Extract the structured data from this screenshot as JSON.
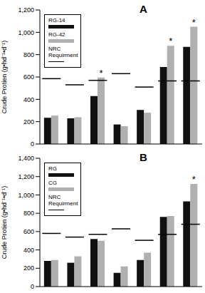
{
  "chart_data": [
    {
      "type": "bar",
      "title": "A",
      "y_label": "Crude Protien (g•hd⁻¹•d⁻¹)",
      "categories": [
        null,
        null,
        null,
        null,
        null,
        null,
        null
      ],
      "series": [
        {
          "name": "RG-14",
          "type": "bar",
          "color": "#111111",
          "values": [
            235,
            230,
            430,
            175,
            305,
            690,
            870
          ]
        },
        {
          "name": "RG-42",
          "type": "bar",
          "color": "#b0b0b0",
          "values": [
            255,
            240,
            595,
            160,
            280,
            880,
            1050
          ]
        },
        {
          "name": "NRC Requirment",
          "type": "scatter",
          "marker": "hline",
          "color": "#000000",
          "values": [
            585,
            530,
            570,
            630,
            510,
            565,
            565
          ]
        }
      ],
      "annotations": [
        null,
        null,
        "*",
        null,
        null,
        "*",
        "*"
      ],
      "ylim": [
        0,
        1200
      ],
      "yticks": [
        0,
        200,
        400,
        600,
        800,
        {
          "value": 1000,
          "label": "1,000"
        },
        {
          "value": 1200,
          "label": "1,200"
        }
      ],
      "grid": false,
      "tick_labels": "y",
      "legend": "upper left"
    },
    {
      "type": "bar",
      "title": "B",
      "y_label": "Crude Protien (g•hd⁻¹•d⁻¹)",
      "categories": [
        null,
        null,
        null,
        null,
        null,
        null,
        null
      ],
      "series": [
        {
          "name": "RG",
          "type": "bar",
          "color": "#111111",
          "values": [
            280,
            260,
            520,
            150,
            290,
            760,
            930
          ]
        },
        {
          "name": "CG",
          "type": "bar",
          "color": "#b0b0b0",
          "values": [
            290,
            330,
            500,
            220,
            370,
            770,
            1120
          ]
        },
        {
          "name": "NRC Requirment",
          "type": "scatter",
          "marker": "hline",
          "color": "#000000",
          "values": [
            580,
            540,
            570,
            630,
            505,
            570,
            680
          ]
        }
      ],
      "annotations": [
        null,
        null,
        null,
        null,
        null,
        null,
        "*"
      ],
      "ylim": [
        0,
        1400
      ],
      "yticks": [
        0,
        200,
        400,
        600,
        800,
        {
          "value": 1000,
          "label": "1,000"
        },
        {
          "value": 1200,
          "label": "1,200"
        },
        {
          "value": 1400,
          "label": "1,400"
        }
      ],
      "grid": false,
      "tick_labels": "y",
      "legend": "upper left"
    }
  ]
}
